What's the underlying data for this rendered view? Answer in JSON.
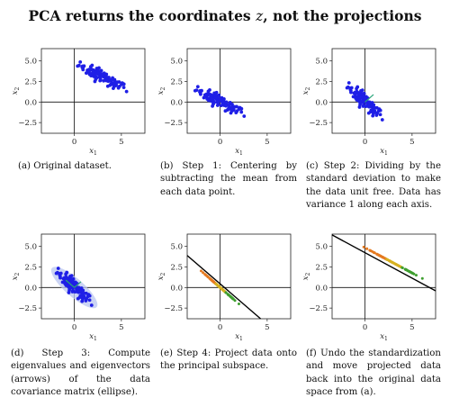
{
  "title": {
    "before": "PCA returns the coordinates ",
    "var": "z",
    "after": ", not the projections"
  },
  "axis": {
    "xlabel": "x",
    "xsub": "1",
    "ylabel": "x",
    "ysub": "2"
  },
  "panels": [
    {
      "id": "a",
      "caption": "(a) Original dataset.",
      "yticks": [
        "5.0",
        "2.5",
        "0.0",
        "−2.5"
      ],
      "xticks": [
        "0",
        "5"
      ]
    },
    {
      "id": "b",
      "caption": "(b) Step 1: Centering by subtracting the mean from each data point.",
      "yticks": [
        "5.0",
        "2.5",
        "0.0",
        "−2.5"
      ],
      "xticks": [
        "0",
        "5"
      ]
    },
    {
      "id": "c",
      "caption": "(c) Step 2: Dividing by the standard deviation to make the data unit free. Data has variance 1 along each axis.",
      "yticks": [
        "5.0",
        "2.5",
        "0.0",
        "−2.5"
      ],
      "xticks": [
        "0",
        "5"
      ]
    },
    {
      "id": "d",
      "caption": "(d) Step 3: Compute eigenvalues and eigenvectors (arrows) of the data covariance matrix (ellipse).",
      "yticks": [
        "5.0",
        "2.5",
        "0.0",
        "−2.5"
      ],
      "xticks": [
        "0",
        "5"
      ]
    },
    {
      "id": "e",
      "caption": "(e) Step 4: Project data onto the principal subspace.",
      "yticks": [
        "5.0",
        "2.5",
        "0.0",
        "−2.5"
      ],
      "xticks": [
        "0",
        "5"
      ]
    },
    {
      "id": "f",
      "caption": "(f) Undo the standardization and move projected data back into the original data space from (a).",
      "yticks": [
        "5.0",
        "2.5",
        "0.0",
        "−2.5"
      ],
      "xticks": [
        "0",
        "5"
      ]
    }
  ],
  "colors": {
    "points": "#1f1fe6",
    "ellipse": "#b9c6f0",
    "arrow": "#2aa57a",
    "line": "#000000",
    "proj_a": "#e57a20",
    "proj_b": "#d6b020",
    "proj_c": "#3f9f30"
  }
}
